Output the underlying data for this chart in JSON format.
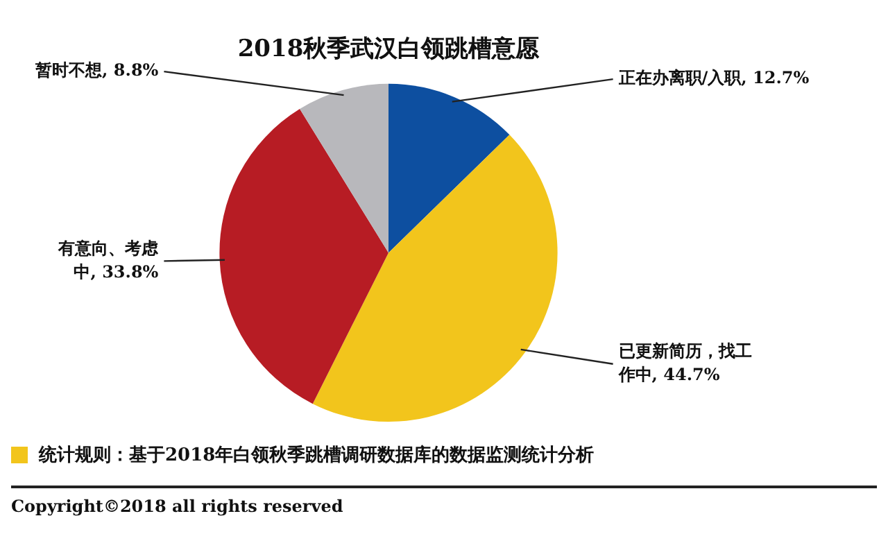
{
  "chart_data": {
    "type": "pie",
    "title": "2018秋季武汉白领跳槽意愿",
    "categories": [
      "正在办离职/入职",
      "已更新简历，找工作中",
      "有意向、考虑中",
      "暂时不想"
    ],
    "values": [
      12.7,
      44.7,
      33.8,
      8.8
    ],
    "value_labels": [
      "12.7%",
      "44.7%",
      "33.8%",
      "8.8%"
    ],
    "colors": [
      "#0d4fa0",
      "#f2c51c",
      "#b71c24",
      "#b8b8bc"
    ],
    "annotations": [
      "统计规则：基于2018年白领秋季跳槽调研数据库的数据监测统计分析",
      "Copyright©2018 all rights reserved"
    ]
  }
}
